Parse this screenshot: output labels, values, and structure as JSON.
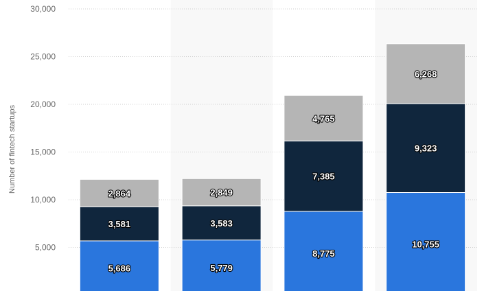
{
  "chart_data": {
    "type": "bar",
    "stacked": true,
    "ylabel": "Number of fintech startups",
    "ylim": [
      0,
      30000
    ],
    "yticks": [
      "5,000",
      "10,000",
      "15,000",
      "20,000",
      "25,000",
      "30,000"
    ],
    "ytick_values": [
      5000,
      10000,
      15000,
      20000,
      25000,
      30000
    ],
    "grid": true,
    "categories": [
      "",
      "",
      "",
      ""
    ],
    "series": [
      {
        "color": "#2a76dd",
        "values": [
          5686,
          5779,
          8775,
          10755
        ],
        "labels": [
          "5,686",
          "5,779",
          "8,775",
          "10,755"
        ]
      },
      {
        "color": "#10263d",
        "values": [
          3581,
          3583,
          7385,
          9323
        ],
        "labels": [
          "3,581",
          "3,583",
          "7,385",
          "9,323"
        ]
      },
      {
        "color": "#b5b5b5",
        "values": [
          2864,
          2849,
          4765,
          6268
        ],
        "labels": [
          "2,864",
          "2,849",
          "4,765",
          "6,268"
        ]
      }
    ]
  }
}
